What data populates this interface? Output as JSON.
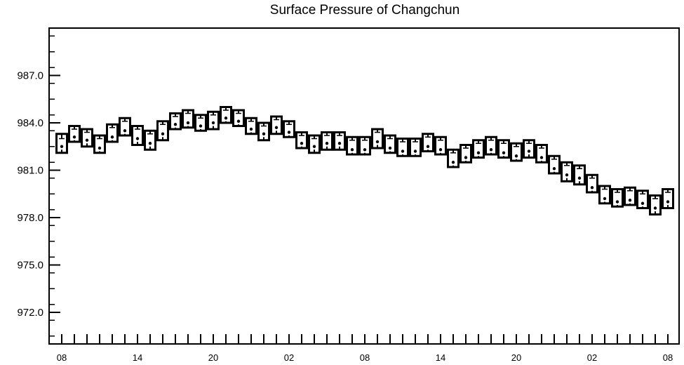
{
  "chart_data": {
    "type": "box",
    "title": "Surface Pressure of Changchun",
    "xlabel": "",
    "ylabel": "",
    "ylim": [
      970.0,
      990.0
    ],
    "y_ticks": [
      972.0,
      975.0,
      978.0,
      981.0,
      984.0,
      987.0
    ],
    "y_tick_labels": [
      "972.0",
      "975.0",
      "978.0",
      "981.0",
      "984.0",
      "987.0"
    ],
    "x_time_step_hours": 1,
    "x_tick_labels": [
      {
        "i": 0,
        "label": "08"
      },
      {
        "i": 6,
        "label": "14"
      },
      {
        "i": 12,
        "label": "20"
      },
      {
        "i": 18,
        "label": "02"
      },
      {
        "i": 24,
        "label": "08"
      },
      {
        "i": 30,
        "label": "14"
      },
      {
        "i": 36,
        "label": "20"
      },
      {
        "i": 42,
        "label": "02"
      },
      {
        "i": 48,
        "label": "08"
      }
    ],
    "grid": false,
    "series": [
      {
        "values": [
          982.5,
          983.1,
          982.9,
          982.4,
          983.1,
          983.5,
          983.0,
          982.7,
          983.3,
          983.9,
          984.0,
          983.8,
          984.0,
          984.3,
          984.1,
          983.6,
          983.3,
          983.7,
          983.4,
          982.7,
          982.5,
          982.7,
          982.7,
          982.3,
          982.3,
          982.8,
          982.4,
          982.2,
          982.2,
          982.5,
          982.3,
          981.5,
          981.8,
          982.1,
          982.3,
          982.1,
          981.9,
          982.2,
          981.8,
          981.1,
          980.7,
          980.5,
          979.9,
          979.2,
          979.0,
          979.1,
          978.9,
          978.6,
          979.0
        ],
        "box_lower": [
          982.1,
          982.8,
          982.5,
          982.1,
          982.8,
          983.2,
          982.6,
          982.3,
          982.9,
          983.6,
          983.7,
          983.5,
          983.6,
          984.0,
          983.8,
          983.3,
          982.9,
          983.3,
          983.1,
          982.4,
          982.1,
          982.3,
          982.3,
          982.0,
          982.0,
          982.4,
          982.1,
          981.9,
          981.9,
          982.2,
          982.0,
          981.2,
          981.5,
          981.8,
          982.0,
          981.8,
          981.6,
          981.8,
          981.5,
          980.8,
          980.3,
          980.1,
          979.6,
          978.9,
          978.7,
          978.8,
          978.6,
          978.2,
          978.6
        ],
        "box_upper": [
          983.3,
          983.8,
          983.6,
          983.2,
          983.9,
          984.3,
          983.8,
          983.5,
          984.1,
          984.6,
          984.8,
          984.5,
          984.7,
          985.0,
          984.8,
          984.3,
          984.0,
          984.4,
          984.1,
          983.4,
          983.2,
          983.4,
          983.4,
          983.1,
          983.1,
          983.6,
          983.2,
          983.0,
          983.0,
          983.3,
          983.1,
          982.3,
          982.6,
          982.9,
          983.1,
          982.9,
          982.7,
          982.9,
          982.6,
          981.9,
          981.5,
          981.3,
          980.7,
          980.0,
          979.8,
          979.9,
          979.7,
          979.4,
          979.8
        ],
        "whisker_high": [
          983.0,
          983.6,
          983.4,
          983.0,
          983.7,
          984.1,
          983.6,
          983.3,
          983.9,
          984.4,
          984.6,
          984.3,
          984.5,
          984.8,
          984.6,
          984.1,
          983.8,
          984.2,
          983.9,
          983.2,
          983.0,
          983.2,
          983.2,
          982.9,
          982.9,
          983.4,
          983.0,
          982.8,
          982.8,
          983.1,
          982.9,
          982.1,
          982.4,
          982.7,
          982.9,
          982.7,
          982.5,
          982.7,
          982.4,
          981.7,
          981.3,
          981.1,
          980.5,
          979.8,
          979.6,
          979.7,
          979.5,
          979.2,
          979.6
        ],
        "whisker_low": [
          982.3,
          982.9,
          982.7,
          982.2,
          982.9,
          983.3,
          982.8,
          982.5,
          983.1,
          983.7,
          983.8,
          983.6,
          983.8,
          984.1,
          983.9,
          983.4,
          983.1,
          983.5,
          983.2,
          982.5,
          982.3,
          982.5,
          982.5,
          982.1,
          982.1,
          982.6,
          982.2,
          982.0,
          982.0,
          982.3,
          982.1,
          981.3,
          981.6,
          981.9,
          982.1,
          981.9,
          981.7,
          982.0,
          981.6,
          980.9,
          980.5,
          980.3,
          979.7,
          979.0,
          978.8,
          978.9,
          978.7,
          978.4,
          978.8
        ]
      }
    ]
  }
}
